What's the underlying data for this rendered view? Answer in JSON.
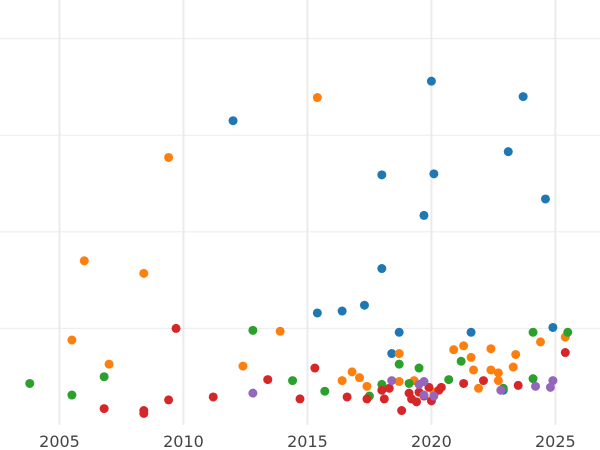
{
  "chart_data": {
    "type": "scatter",
    "title": "",
    "xlabel": "",
    "ylabel": "",
    "xlim": [
      2002.6,
      2026.8
    ],
    "ylim": [
      0,
      44
    ],
    "grid": true,
    "legend": "none",
    "x_ticks": [
      2005,
      2010,
      2015,
      2020,
      2025
    ],
    "x_tick_labels": [
      "2005",
      "2010",
      "2015",
      "2020",
      "2025"
    ],
    "y_gridlines": [
      10,
      20,
      30,
      40
    ],
    "series": [
      {
        "color": "#1f77b4",
        "points": [
          [
            2012.0,
            31.5
          ],
          [
            2015.4,
            11.6
          ],
          [
            2016.4,
            11.8
          ],
          [
            2017.3,
            12.4
          ],
          [
            2018.0,
            16.2
          ],
          [
            2018.0,
            25.9
          ],
          [
            2018.4,
            7.4
          ],
          [
            2018.7,
            9.6
          ],
          [
            2019.7,
            21.7
          ],
          [
            2020.0,
            35.6
          ],
          [
            2020.1,
            26.0
          ],
          [
            2021.6,
            9.6
          ],
          [
            2022.9,
            3.6
          ],
          [
            2023.1,
            28.3
          ],
          [
            2023.7,
            34.0
          ],
          [
            2024.6,
            23.4
          ],
          [
            2024.9,
            10.1
          ]
        ]
      },
      {
        "color": "#ff7f0e",
        "points": [
          [
            2005.5,
            8.8
          ],
          [
            2006.0,
            17.0
          ],
          [
            2007.0,
            6.3
          ],
          [
            2008.4,
            15.7
          ],
          [
            2009.4,
            27.7
          ],
          [
            2012.4,
            6.1
          ],
          [
            2013.9,
            9.7
          ],
          [
            2015.4,
            33.9
          ],
          [
            2016.4,
            4.6
          ],
          [
            2016.8,
            5.5
          ],
          [
            2017.1,
            4.9
          ],
          [
            2017.4,
            4.0
          ],
          [
            2018.7,
            4.5
          ],
          [
            2018.7,
            7.4
          ],
          [
            2019.3,
            4.6
          ],
          [
            2020.1,
            3.4
          ],
          [
            2020.9,
            7.8
          ],
          [
            2021.3,
            8.2
          ],
          [
            2021.6,
            7.0
          ],
          [
            2021.7,
            5.7
          ],
          [
            2021.9,
            3.8
          ],
          [
            2022.4,
            7.9
          ],
          [
            2022.4,
            5.7
          ],
          [
            2022.7,
            4.6
          ],
          [
            2022.7,
            5.4
          ],
          [
            2023.3,
            6.0
          ],
          [
            2023.4,
            7.3
          ],
          [
            2024.4,
            8.6
          ],
          [
            2025.4,
            9.1
          ]
        ]
      },
      {
        "color": "#2ca02c",
        "points": [
          [
            2003.8,
            4.3
          ],
          [
            2005.5,
            3.1
          ],
          [
            2006.8,
            5.0
          ],
          [
            2012.8,
            9.8
          ],
          [
            2014.4,
            4.6
          ],
          [
            2015.7,
            3.5
          ],
          [
            2017.5,
            3.0
          ],
          [
            2018.0,
            4.2
          ],
          [
            2018.7,
            6.3
          ],
          [
            2019.1,
            4.3
          ],
          [
            2019.5,
            5.9
          ],
          [
            2020.7,
            4.7
          ],
          [
            2021.2,
            6.6
          ],
          [
            2022.9,
            3.8
          ],
          [
            2024.1,
            4.8
          ],
          [
            2024.1,
            9.6
          ],
          [
            2025.5,
            9.6
          ]
        ]
      },
      {
        "color": "#d62728",
        "points": [
          [
            2006.8,
            1.7
          ],
          [
            2008.4,
            1.5
          ],
          [
            2008.4,
            1.2
          ],
          [
            2009.4,
            2.6
          ],
          [
            2009.7,
            10.0
          ],
          [
            2011.2,
            2.9
          ],
          [
            2013.4,
            4.7
          ],
          [
            2014.7,
            2.7
          ],
          [
            2015.3,
            5.9
          ],
          [
            2016.6,
            2.9
          ],
          [
            2017.4,
            2.7
          ],
          [
            2018.0,
            3.6
          ],
          [
            2018.1,
            2.7
          ],
          [
            2018.3,
            3.8
          ],
          [
            2018.8,
            1.5
          ],
          [
            2019.1,
            3.3
          ],
          [
            2019.2,
            2.7
          ],
          [
            2019.4,
            2.4
          ],
          [
            2019.5,
            3.4
          ],
          [
            2019.7,
            3.0
          ],
          [
            2019.9,
            3.9
          ],
          [
            2020.0,
            2.5
          ],
          [
            2020.3,
            3.6
          ],
          [
            2020.4,
            3.9
          ],
          [
            2021.3,
            4.3
          ],
          [
            2022.1,
            4.6
          ],
          [
            2023.5,
            4.1
          ],
          [
            2025.4,
            7.5
          ]
        ]
      },
      {
        "color": "#9467bd",
        "points": [
          [
            2012.8,
            3.3
          ],
          [
            2018.4,
            4.6
          ],
          [
            2019.5,
            4.2
          ],
          [
            2019.7,
            4.5
          ],
          [
            2019.7,
            3.1
          ],
          [
            2020.1,
            3.0
          ],
          [
            2022.8,
            3.6
          ],
          [
            2024.2,
            4.0
          ],
          [
            2024.8,
            3.9
          ],
          [
            2024.9,
            4.6
          ]
        ]
      }
    ]
  }
}
